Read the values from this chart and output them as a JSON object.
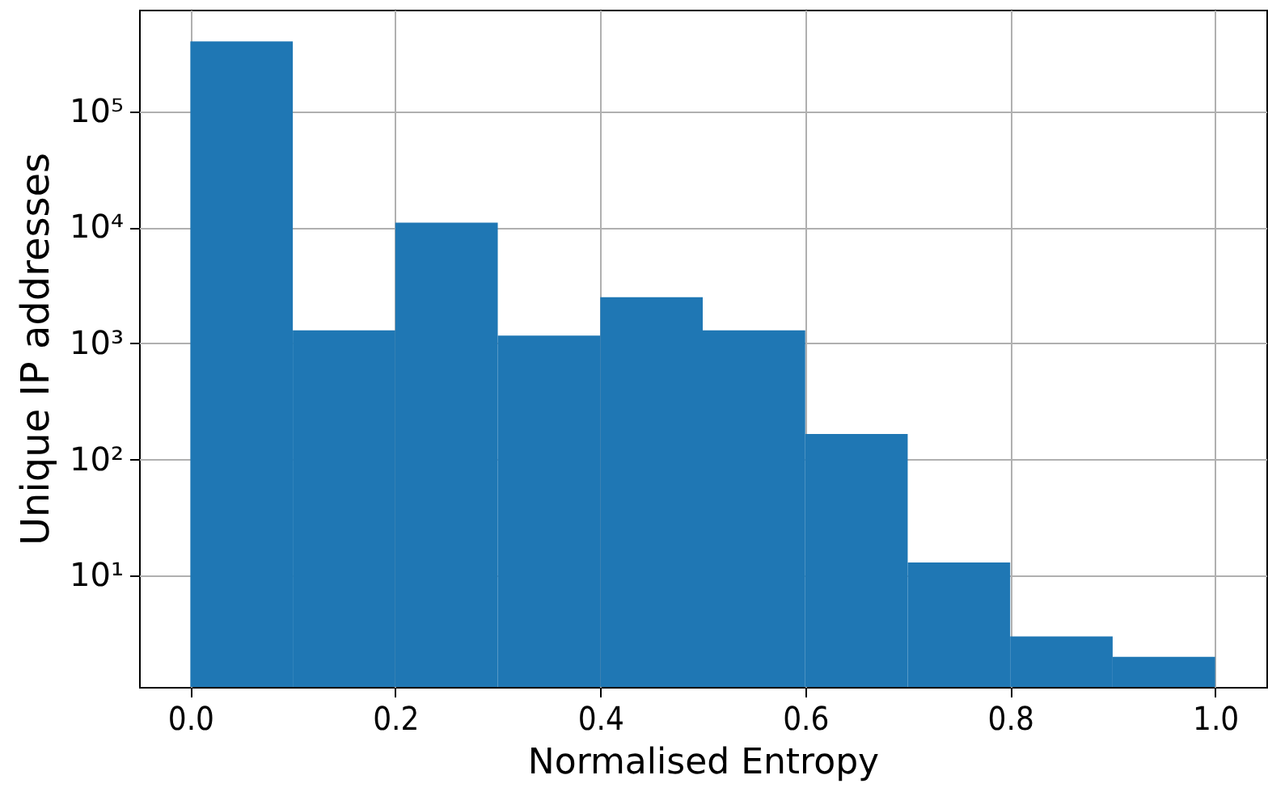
{
  "chart_data": {
    "type": "histogram",
    "xlabel": "Normalised Entropy",
    "ylabel": "Unique IP addresses",
    "bins": [
      0.0,
      0.1,
      0.2,
      0.3,
      0.4,
      0.5,
      0.6,
      0.7,
      0.8,
      0.9,
      1.0
    ],
    "values": [
      400000,
      1300,
      11000,
      1170,
      2500,
      1300,
      166,
      13,
      3,
      2
    ],
    "color": "#1f77b4",
    "log": "y",
    "grid": true,
    "xlim": [
      -0.05,
      1.05
    ],
    "xticks": [
      {
        "value": 0,
        "label": "0.0"
      },
      0.2,
      0.4,
      0.6,
      0.8,
      {
        "value": 1,
        "label": "1.0"
      }
    ],
    "ylim": [
      1.1,
      750000
    ],
    "yticks": [
      {
        "value": 10,
        "label": "10¹"
      },
      {
        "value": 100,
        "label": "10²"
      },
      {
        "value": 1000,
        "label": "10³"
      },
      {
        "value": 10000,
        "label": "10⁴"
      },
      {
        "value": 100000,
        "label": "10⁵"
      }
    ]
  }
}
